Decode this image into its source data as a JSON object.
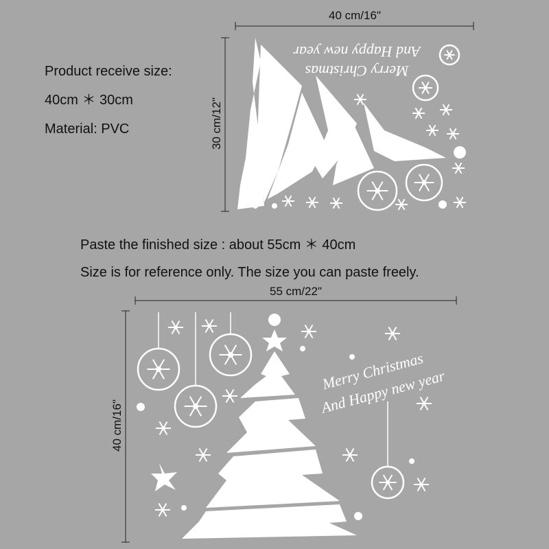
{
  "top_sticker": {
    "width_label": "40 cm/16\"",
    "height_label": "30 cm/12\"",
    "greeting_line1": "Merry Christmas",
    "greeting_line2": "And Happy new year"
  },
  "product_info": {
    "line1": "Product receive size:",
    "line2": "40cm ＊ 30cm",
    "line3": "Material: PVC"
  },
  "paste_info": {
    "line1": "Paste the finished size : about 55cm ＊ 40cm",
    "line2": "Size is for reference only. The size you can paste freely."
  },
  "bottom_sticker": {
    "width_label": "55 cm/22\"",
    "height_label": "40 cm/16\"",
    "greeting_line1": "Merry Christmas",
    "greeting_line2": "And Happy new year"
  }
}
